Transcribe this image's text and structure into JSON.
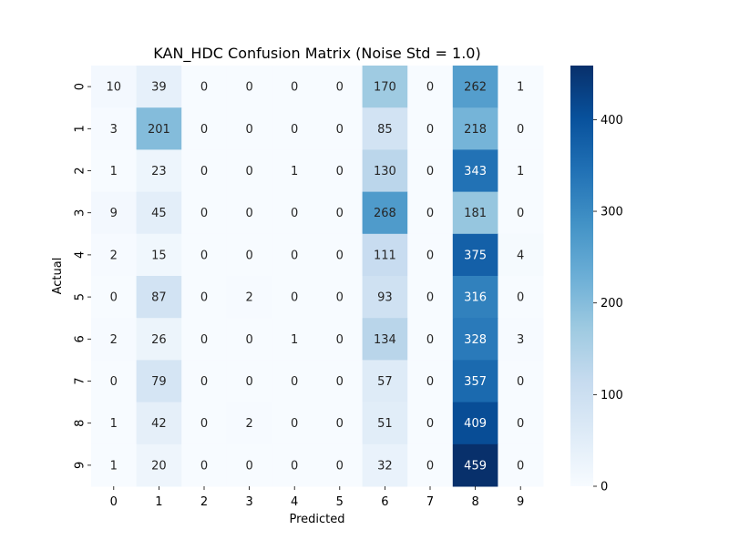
{
  "chart_data": {
    "type": "heatmap",
    "title": "KAN_HDC Confusion Matrix (Noise Std = 1.0)",
    "xlabel": "Predicted",
    "ylabel": "Actual",
    "x_categories": [
      "0",
      "1",
      "2",
      "3",
      "4",
      "5",
      "6",
      "7",
      "8",
      "9"
    ],
    "y_categories": [
      "0",
      "1",
      "2",
      "3",
      "4",
      "5",
      "6",
      "7",
      "8",
      "9"
    ],
    "values": [
      [
        10,
        39,
        0,
        0,
        0,
        0,
        170,
        0,
        262,
        1
      ],
      [
        3,
        201,
        0,
        0,
        0,
        0,
        85,
        0,
        218,
        0
      ],
      [
        1,
        23,
        0,
        0,
        1,
        0,
        130,
        0,
        343,
        1
      ],
      [
        9,
        45,
        0,
        0,
        0,
        0,
        268,
        0,
        181,
        0
      ],
      [
        2,
        15,
        0,
        0,
        0,
        0,
        111,
        0,
        375,
        4
      ],
      [
        0,
        87,
        0,
        2,
        0,
        0,
        93,
        0,
        316,
        0
      ],
      [
        2,
        26,
        0,
        0,
        1,
        0,
        134,
        0,
        328,
        3
      ],
      [
        0,
        79,
        0,
        0,
        0,
        0,
        57,
        0,
        357,
        0
      ],
      [
        1,
        42,
        0,
        2,
        0,
        0,
        51,
        0,
        409,
        0
      ],
      [
        1,
        20,
        0,
        0,
        0,
        0,
        32,
        0,
        459,
        0
      ]
    ],
    "colormap": "Blues",
    "vmin": 0,
    "vmax": 459,
    "colorbar_ticks": [
      0,
      100,
      200,
      300,
      400
    ],
    "grid": false,
    "colors": {
      "low": "#f7fbff",
      "high": "#08306b",
      "text_dark": "#262626",
      "text_light": "#ffffff"
    }
  }
}
